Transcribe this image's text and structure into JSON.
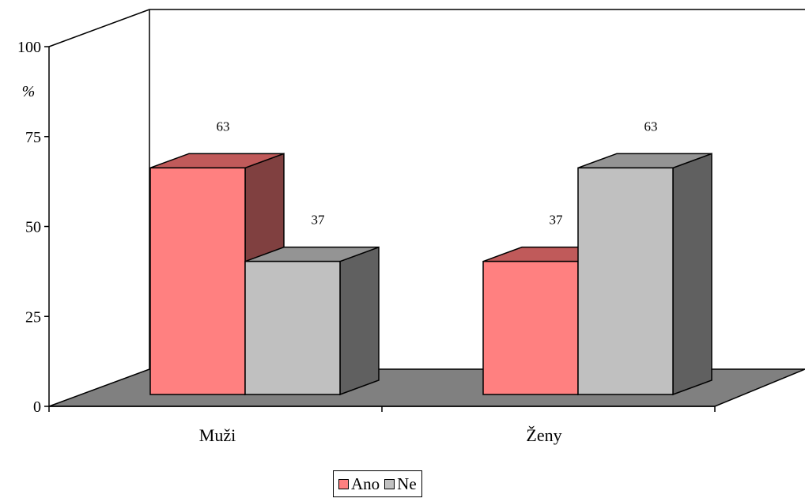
{
  "chart_data": {
    "type": "bar",
    "title": "",
    "xlabel": "",
    "ylabel": "%",
    "categories": [
      "Muži",
      "Ženy"
    ],
    "series": [
      {
        "name": "Ano",
        "values": [
          63,
          37
        ]
      },
      {
        "name": "Ne",
        "values": [
          37,
          63
        ]
      }
    ],
    "ylim": [
      0,
      100
    ],
    "yticks": [
      0,
      25,
      50,
      75,
      100
    ],
    "data_labels": true,
    "legend_position": "bottom",
    "three_d": true,
    "colors": {
      "series_front": [
        "#ff8080",
        "#c0c0c0"
      ],
      "series_top": [
        "#c05a5a",
        "#949494"
      ],
      "series_side": [
        "#804040",
        "#606060"
      ],
      "floor": "#808080",
      "axis": "#000000"
    }
  }
}
